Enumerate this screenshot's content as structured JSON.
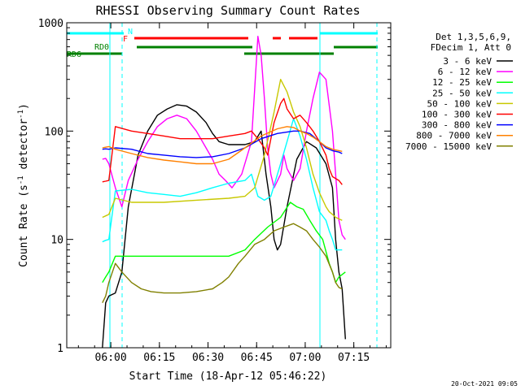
{
  "chart_data": {
    "type": "line",
    "title": "RHESSI Observing Summary Count Rates",
    "xlabel": "Start Time (18-Apr-12 05:46:22)",
    "ylabel_main": "Count Rate (s",
    "ylabel_sup": "-1",
    "ylabel_tail": " detector",
    "ylabel_sup2": "-1",
    "ylabel_close": ")",
    "x_unit": "minutes since 05:46:22",
    "xlim": [
      0,
      100
    ],
    "ylim": [
      1,
      1000
    ],
    "y_scale": "log",
    "x_ticks": [
      {
        "x": 13.6,
        "label": "06:00"
      },
      {
        "x": 28.6,
        "label": "06:15"
      },
      {
        "x": 43.6,
        "label": "06:30"
      },
      {
        "x": 58.6,
        "label": "06:45"
      },
      {
        "x": 73.6,
        "label": "07:00"
      },
      {
        "x": 88.6,
        "label": "07:15"
      }
    ],
    "y_ticks": [
      {
        "y": 1,
        "label": "1"
      },
      {
        "y": 10,
        "label": "10"
      },
      {
        "y": 100,
        "label": "100"
      },
      {
        "y": 1000,
        "label": "1000"
      }
    ],
    "legend": {
      "position": "right",
      "header": [
        "Det 1,3,5,6,9,",
        "FDecim 1, Att 0"
      ]
    },
    "annotations": {
      "flag_labels": [
        {
          "text": "N",
          "color": "#00ffff"
        },
        {
          "text": "F",
          "color": "#ff0000"
        },
        {
          "text": "RD0",
          "color": "#008000"
        },
        {
          "text": "RD6",
          "color": "#008000"
        }
      ],
      "timestamp": "20-Oct-2021 09:05"
    },
    "series": [
      {
        "name": "3 - 6 keV",
        "color": "#000000",
        "points": [
          [
            11,
            1
          ],
          [
            12,
            2.6
          ],
          [
            13,
            3
          ],
          [
            15,
            3.2
          ],
          [
            17,
            5
          ],
          [
            19,
            20
          ],
          [
            22,
            60
          ],
          [
            25,
            100
          ],
          [
            28,
            140
          ],
          [
            31,
            160
          ],
          [
            34,
            175
          ],
          [
            37,
            170
          ],
          [
            40,
            150
          ],
          [
            43,
            120
          ],
          [
            45,
            95
          ],
          [
            47,
            80
          ],
          [
            50,
            75
          ],
          [
            55,
            75
          ],
          [
            58,
            80
          ],
          [
            60,
            100
          ],
          [
            61.5,
            40
          ],
          [
            63,
            20
          ],
          [
            64,
            10
          ],
          [
            65,
            8
          ],
          [
            66,
            9
          ],
          [
            68,
            20
          ],
          [
            71,
            55
          ],
          [
            74,
            80
          ],
          [
            77,
            70
          ],
          [
            80,
            50
          ],
          [
            82,
            30
          ],
          [
            83,
            10
          ],
          [
            84,
            5
          ],
          [
            85,
            3.5
          ],
          [
            86,
            1.2
          ]
        ]
      },
      {
        "name": "6 - 12 keV",
        "color": "#ff00ff",
        "points": [
          [
            11,
            55
          ],
          [
            12,
            56
          ],
          [
            13,
            50
          ],
          [
            15,
            30
          ],
          [
            17,
            20
          ],
          [
            19,
            35
          ],
          [
            22,
            55
          ],
          [
            25,
            80
          ],
          [
            28,
            110
          ],
          [
            31,
            130
          ],
          [
            34,
            140
          ],
          [
            37,
            130
          ],
          [
            40,
            100
          ],
          [
            43,
            70
          ],
          [
            45,
            55
          ],
          [
            47,
            40
          ],
          [
            49,
            35
          ],
          [
            51,
            30
          ],
          [
            54,
            40
          ],
          [
            57,
            80
          ],
          [
            59,
            750
          ],
          [
            60,
            500
          ],
          [
            61,
            200
          ],
          [
            62,
            70
          ],
          [
            63,
            40
          ],
          [
            64,
            30
          ],
          [
            66,
            40
          ],
          [
            67,
            60
          ],
          [
            68,
            45
          ],
          [
            70,
            35
          ],
          [
            72,
            45
          ],
          [
            74,
            100
          ],
          [
            76,
            200
          ],
          [
            78,
            350
          ],
          [
            80,
            300
          ],
          [
            82,
            100
          ],
          [
            83,
            40
          ],
          [
            84,
            15
          ],
          [
            85,
            11
          ],
          [
            86,
            10
          ]
        ]
      },
      {
        "name": "12 - 25 keV",
        "color": "#00ff00",
        "points": [
          [
            11,
            4
          ],
          [
            12,
            4.5
          ],
          [
            13,
            5
          ],
          [
            15,
            7
          ],
          [
            20,
            7
          ],
          [
            30,
            7
          ],
          [
            40,
            7
          ],
          [
            50,
            7
          ],
          [
            55,
            8
          ],
          [
            58,
            10
          ],
          [
            62,
            13
          ],
          [
            66,
            16
          ],
          [
            69,
            22
          ],
          [
            71,
            20
          ],
          [
            73,
            19
          ],
          [
            75,
            15
          ],
          [
            77,
            12
          ],
          [
            79,
            10
          ],
          [
            81,
            6
          ],
          [
            82,
            5
          ],
          [
            83,
            4
          ],
          [
            84,
            4.5
          ],
          [
            86,
            5
          ]
        ]
      },
      {
        "name": "25 - 50 keV",
        "color": "#00ffff",
        "points": [
          [
            11,
            9.5
          ],
          [
            12,
            9.8
          ],
          [
            13,
            10
          ],
          [
            15,
            28
          ],
          [
            20,
            29
          ],
          [
            25,
            27
          ],
          [
            30,
            26
          ],
          [
            35,
            25
          ],
          [
            40,
            27
          ],
          [
            45,
            30
          ],
          [
            50,
            33
          ],
          [
            55,
            35
          ],
          [
            57,
            40
          ],
          [
            59,
            25
          ],
          [
            61,
            23
          ],
          [
            63,
            25
          ],
          [
            66,
            50
          ],
          [
            68,
            80
          ],
          [
            70,
            130
          ],
          [
            72,
            90
          ],
          [
            74,
            55
          ],
          [
            76,
            30
          ],
          [
            78,
            18
          ],
          [
            80,
            15
          ],
          [
            81,
            12
          ],
          [
            82,
            10
          ],
          [
            83,
            8
          ],
          [
            85,
            8
          ]
        ]
      },
      {
        "name": "50 - 100 keV",
        "color": "#c8c800",
        "points": [
          [
            11,
            16
          ],
          [
            12,
            16.5
          ],
          [
            13,
            17
          ],
          [
            15,
            24
          ],
          [
            20,
            22
          ],
          [
            30,
            22
          ],
          [
            40,
            23
          ],
          [
            50,
            24
          ],
          [
            55,
            25
          ],
          [
            58,
            30
          ],
          [
            61,
            60
          ],
          [
            64,
            150
          ],
          [
            66,
            300
          ],
          [
            68,
            230
          ],
          [
            70,
            150
          ],
          [
            72,
            110
          ],
          [
            74,
            70
          ],
          [
            76,
            40
          ],
          [
            78,
            27
          ],
          [
            80,
            20
          ],
          [
            81,
            18
          ],
          [
            82,
            17
          ],
          [
            83,
            16
          ],
          [
            85,
            15
          ]
        ]
      },
      {
        "name": "100 - 300 keV",
        "color": "#ff0000",
        "points": [
          [
            11,
            34
          ],
          [
            12,
            34.5
          ],
          [
            13,
            35
          ],
          [
            15,
            110
          ],
          [
            20,
            100
          ],
          [
            25,
            95
          ],
          [
            30,
            90
          ],
          [
            35,
            85
          ],
          [
            40,
            85
          ],
          [
            45,
            85
          ],
          [
            50,
            90
          ],
          [
            55,
            95
          ],
          [
            57,
            100
          ],
          [
            59,
            85
          ],
          [
            61,
            70
          ],
          [
            62,
            60
          ],
          [
            64,
            120
          ],
          [
            66,
            180
          ],
          [
            67,
            200
          ],
          [
            68,
            160
          ],
          [
            70,
            130
          ],
          [
            72,
            140
          ],
          [
            74,
            120
          ],
          [
            76,
            100
          ],
          [
            78,
            80
          ],
          [
            80,
            60
          ],
          [
            81,
            45
          ],
          [
            82,
            38
          ],
          [
            84,
            35
          ],
          [
            85,
            32
          ]
        ]
      },
      {
        "name": "300 - 800 keV",
        "color": "#0000ff",
        "points": [
          [
            11,
            68
          ],
          [
            12,
            68.5
          ],
          [
            13,
            68
          ],
          [
            15,
            70
          ],
          [
            20,
            68
          ],
          [
            25,
            62
          ],
          [
            30,
            60
          ],
          [
            35,
            58
          ],
          [
            40,
            57
          ],
          [
            45,
            58
          ],
          [
            50,
            62
          ],
          [
            55,
            70
          ],
          [
            60,
            85
          ],
          [
            65,
            95
          ],
          [
            70,
            100
          ],
          [
            72,
            100
          ],
          [
            75,
            95
          ],
          [
            78,
            80
          ],
          [
            80,
            70
          ],
          [
            82,
            66
          ],
          [
            84,
            64
          ],
          [
            85,
            62
          ]
        ]
      },
      {
        "name": "800 - 7000 keV",
        "color": "#ff8000",
        "points": [
          [
            11,
            70
          ],
          [
            12,
            71
          ],
          [
            13,
            72
          ],
          [
            15,
            68
          ],
          [
            20,
            62
          ],
          [
            25,
            57
          ],
          [
            30,
            54
          ],
          [
            35,
            52
          ],
          [
            40,
            50
          ],
          [
            45,
            50
          ],
          [
            50,
            55
          ],
          [
            55,
            70
          ],
          [
            60,
            90
          ],
          [
            65,
            105
          ],
          [
            68,
            110
          ],
          [
            70,
            108
          ],
          [
            72,
            100
          ],
          [
            74,
            95
          ],
          [
            76,
            88
          ],
          [
            78,
            80
          ],
          [
            80,
            72
          ],
          [
            82,
            68
          ],
          [
            84,
            66
          ],
          [
            85,
            65
          ]
        ]
      },
      {
        "name": "7000 - 15000 keV",
        "color": "#808000",
        "points": [
          [
            11,
            2.6
          ],
          [
            12,
            3
          ],
          [
            13,
            4
          ],
          [
            15,
            6
          ],
          [
            17,
            5
          ],
          [
            20,
            4
          ],
          [
            23,
            3.5
          ],
          [
            26,
            3.3
          ],
          [
            30,
            3.2
          ],
          [
            35,
            3.2
          ],
          [
            40,
            3.3
          ],
          [
            45,
            3.5
          ],
          [
            48,
            4
          ],
          [
            50,
            4.5
          ],
          [
            53,
            6
          ],
          [
            55,
            7
          ],
          [
            58,
            9
          ],
          [
            61,
            10
          ],
          [
            64,
            12
          ],
          [
            67,
            13
          ],
          [
            70,
            14
          ],
          [
            72,
            13
          ],
          [
            74,
            12
          ],
          [
            76,
            10
          ],
          [
            78,
            8.5
          ],
          [
            80,
            7
          ],
          [
            82,
            5
          ],
          [
            83,
            4
          ],
          [
            84,
            3.6
          ],
          [
            85,
            3.5
          ]
        ]
      }
    ]
  }
}
